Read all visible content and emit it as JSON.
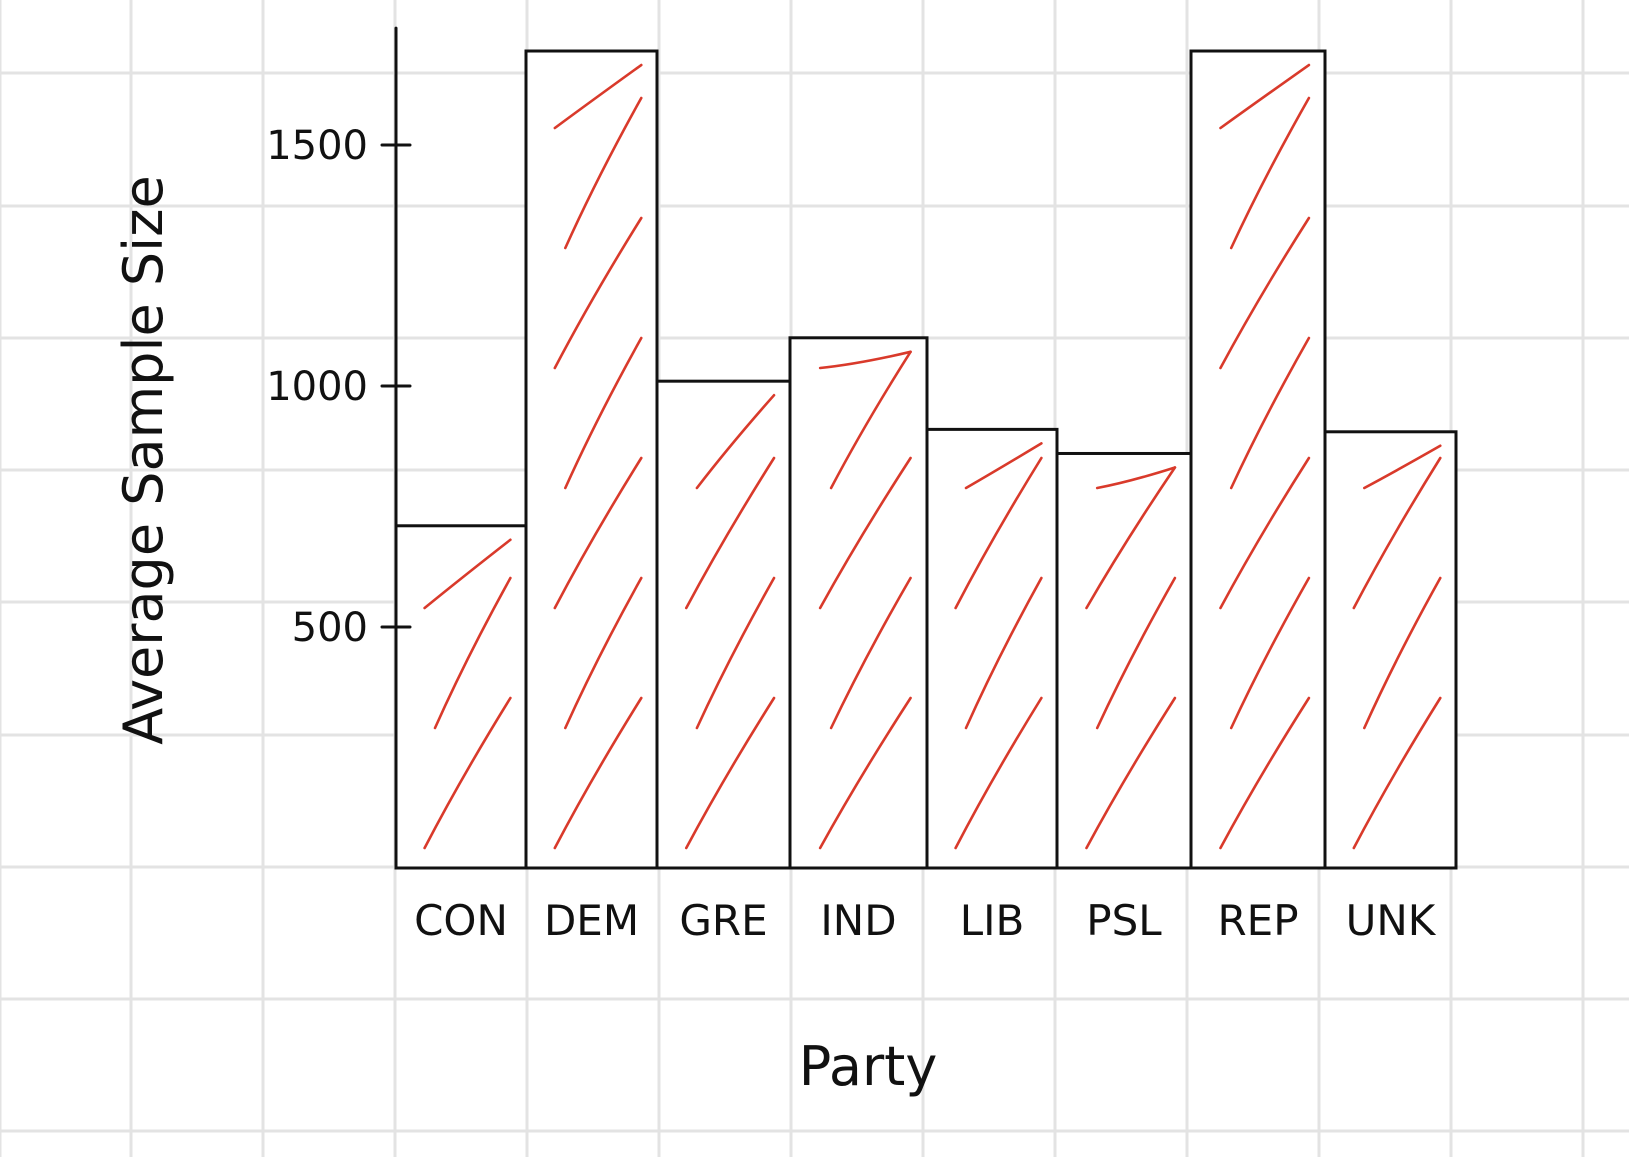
{
  "chart_data": {
    "type": "bar",
    "title": "",
    "xlabel": "Party",
    "ylabel": "Average Sample Size",
    "categories": [
      "CON",
      "DEM",
      "GRE",
      "IND",
      "LIB",
      "PSL",
      "REP",
      "UNK"
    ],
    "values": [
      710,
      1695,
      1010,
      1100,
      910,
      860,
      1695,
      905
    ],
    "yticks": [
      500,
      1000,
      1500
    ],
    "ylim": [
      0,
      1730
    ],
    "grid": true,
    "legend": "none",
    "colors": {
      "bar_fill": "#ffffff",
      "bar_outline": "#111111",
      "hatch": "#d93a2b",
      "grid": "#e3e3e3",
      "background": "#ffffff"
    }
  }
}
